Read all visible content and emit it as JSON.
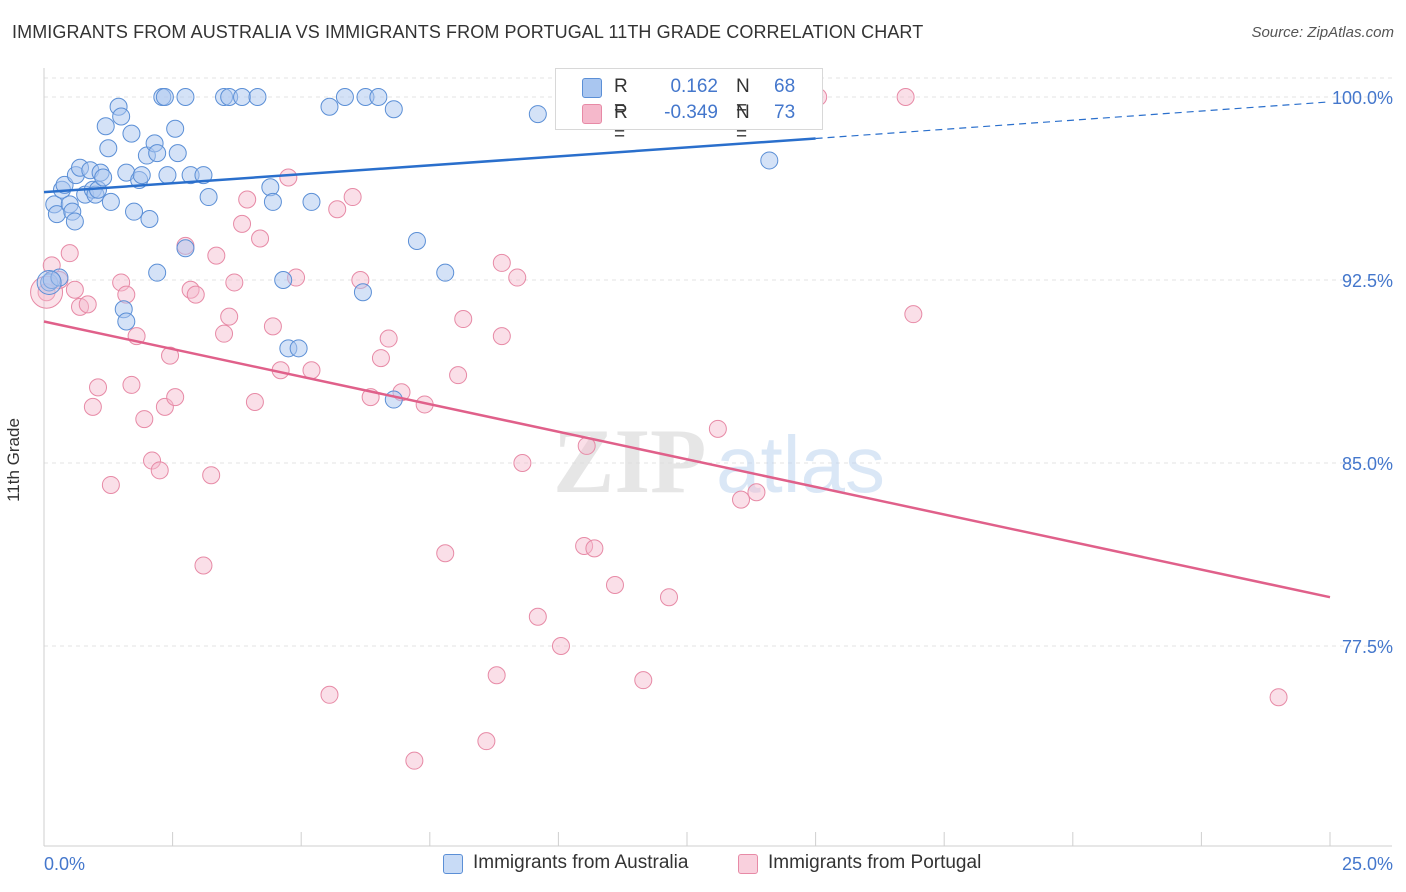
{
  "header": {
    "title": "IMMIGRANTS FROM AUSTRALIA VS IMMIGRANTS FROM PORTUGAL 11TH GRADE CORRELATION CHART",
    "source": "Source: ZipAtlas.com"
  },
  "watermark": {
    "zip": "ZIP",
    "atlas": "atlas"
  },
  "legend_top": {
    "rows": [
      {
        "r_label": "R =",
        "r_value": "0.162",
        "n_label": "N =",
        "n_value": "68",
        "color": "#a9c6f0"
      },
      {
        "r_label": "R =",
        "r_value": "-0.349",
        "n_label": "N =",
        "n_value": "73",
        "color": "#f5b8cb"
      }
    ]
  },
  "legend_bottom": {
    "items": [
      {
        "label": "Immigrants from Australia",
        "color": "#a9c6f0"
      },
      {
        "label": "Immigrants from Portugal",
        "color": "#f5b8cb"
      }
    ]
  },
  "colors": {
    "australia_fill": "#a9c6f0",
    "australia_stroke": "#5b8fd6",
    "australia_line": "#2a6fcc",
    "portugal_fill": "#f5b8cb",
    "portugal_stroke": "#e78aa6",
    "portugal_line": "#e0608a",
    "grid": "#e3e3e3",
    "tick_label": "#4477cc"
  },
  "chart_data": {
    "type": "scatter",
    "title": "IMMIGRANTS FROM AUSTRALIA VS IMMIGRANTS FROM PORTUGAL 11TH GRADE CORRELATION CHART",
    "xlabel": "",
    "ylabel": "11th Grade",
    "xlim": [
      0,
      25
    ],
    "ylim": [
      70.5,
      101.5
    ],
    "x_tick_labels": [
      "0.0%",
      "25.0%"
    ],
    "y_ticks": [
      77.5,
      85.0,
      92.5,
      100.0
    ],
    "y_tick_labels": [
      "77.5%",
      "85.0%",
      "92.5%",
      "100.0%"
    ],
    "grid": true,
    "legend_position": "top-center",
    "series": [
      {
        "name": "Immigrants from Australia",
        "r": 0.162,
        "n": 68,
        "trend": {
          "x0": 0.0,
          "y0": 96.1,
          "x1": 15.0,
          "y1": 98.3,
          "dashed_to_x": 25.0,
          "dashed_to_y": 99.8
        },
        "points": [
          [
            0.1,
            92.4
          ],
          [
            0.2,
            95.6
          ],
          [
            0.25,
            95.2
          ],
          [
            0.35,
            96.2
          ],
          [
            0.4,
            96.4
          ],
          [
            0.5,
            95.6
          ],
          [
            0.55,
            95.3
          ],
          [
            0.6,
            94.9
          ],
          [
            0.62,
            96.8
          ],
          [
            0.7,
            97.1
          ],
          [
            0.8,
            96.0
          ],
          [
            0.9,
            97.0
          ],
          [
            0.95,
            96.2
          ],
          [
            1.0,
            96.0
          ],
          [
            1.05,
            96.2
          ],
          [
            1.1,
            96.9
          ],
          [
            1.15,
            96.7
          ],
          [
            1.2,
            98.8
          ],
          [
            1.25,
            97.9
          ],
          [
            1.3,
            95.7
          ],
          [
            1.45,
            99.6
          ],
          [
            1.5,
            99.2
          ],
          [
            1.6,
            96.9
          ],
          [
            1.7,
            98.5
          ],
          [
            1.75,
            95.3
          ],
          [
            1.85,
            96.6
          ],
          [
            1.9,
            96.8
          ],
          [
            2.0,
            97.6
          ],
          [
            2.05,
            95.0
          ],
          [
            2.15,
            98.1
          ],
          [
            2.2,
            97.7
          ],
          [
            2.3,
            100.0
          ],
          [
            2.35,
            100.0
          ],
          [
            2.4,
            96.8
          ],
          [
            2.55,
            98.7
          ],
          [
            2.6,
            97.7
          ],
          [
            2.75,
            100.0
          ],
          [
            2.85,
            96.8
          ],
          [
            3.1,
            96.8
          ],
          [
            3.2,
            95.9
          ],
          [
            3.5,
            100.0
          ],
          [
            3.6,
            100.0
          ],
          [
            3.85,
            100.0
          ],
          [
            4.15,
            100.0
          ],
          [
            4.4,
            96.3
          ],
          [
            4.45,
            95.7
          ],
          [
            4.65,
            92.5
          ],
          [
            5.2,
            95.7
          ],
          [
            5.55,
            99.6
          ],
          [
            5.85,
            100.0
          ],
          [
            6.25,
            100.0
          ],
          [
            6.5,
            100.0
          ],
          [
            6.8,
            99.5
          ],
          [
            7.25,
            94.1
          ],
          [
            7.8,
            92.8
          ],
          [
            9.6,
            99.3
          ],
          [
            14.1,
            97.4
          ],
          [
            0.15,
            92.5
          ],
          [
            0.3,
            92.6
          ],
          [
            1.55,
            91.3
          ],
          [
            1.6,
            90.8
          ],
          [
            2.2,
            92.8
          ],
          [
            2.75,
            93.8
          ],
          [
            4.75,
            89.7
          ],
          [
            4.95,
            89.7
          ],
          [
            6.2,
            92.0
          ],
          [
            6.8,
            87.6
          ],
          [
            12.3,
            100.0
          ]
        ]
      },
      {
        "name": "Immigrants from Portugal",
        "r": -0.349,
        "n": 73,
        "trend": {
          "x0": 0.0,
          "y0": 90.8,
          "x1": 25.0,
          "y1": 79.5
        },
        "points": [
          [
            0.05,
            92.0
          ],
          [
            0.15,
            93.1
          ],
          [
            0.3,
            92.5
          ],
          [
            0.5,
            93.6
          ],
          [
            0.6,
            92.1
          ],
          [
            0.7,
            91.4
          ],
          [
            0.85,
            91.5
          ],
          [
            0.95,
            87.3
          ],
          [
            1.05,
            88.1
          ],
          [
            1.3,
            84.1
          ],
          [
            1.5,
            92.4
          ],
          [
            1.6,
            91.9
          ],
          [
            1.7,
            88.2
          ],
          [
            1.8,
            90.2
          ],
          [
            1.95,
            86.8
          ],
          [
            2.1,
            85.1
          ],
          [
            2.25,
            84.7
          ],
          [
            2.35,
            87.3
          ],
          [
            2.45,
            89.4
          ],
          [
            2.55,
            87.7
          ],
          [
            2.75,
            93.9
          ],
          [
            2.85,
            92.1
          ],
          [
            2.95,
            91.9
          ],
          [
            3.1,
            80.8
          ],
          [
            3.25,
            84.5
          ],
          [
            3.35,
            93.5
          ],
          [
            3.5,
            90.3
          ],
          [
            3.6,
            91.0
          ],
          [
            3.7,
            92.4
          ],
          [
            3.85,
            94.8
          ],
          [
            3.95,
            95.8
          ],
          [
            4.1,
            87.5
          ],
          [
            4.2,
            94.2
          ],
          [
            4.45,
            90.6
          ],
          [
            4.6,
            88.8
          ],
          [
            4.75,
            96.7
          ],
          [
            4.9,
            92.6
          ],
          [
            5.2,
            88.8
          ],
          [
            5.55,
            75.5
          ],
          [
            5.7,
            95.4
          ],
          [
            6.0,
            95.9
          ],
          [
            6.15,
            92.5
          ],
          [
            6.35,
            87.7
          ],
          [
            6.55,
            89.3
          ],
          [
            6.7,
            90.1
          ],
          [
            6.95,
            87.9
          ],
          [
            7.2,
            72.8
          ],
          [
            7.4,
            87.4
          ],
          [
            7.8,
            81.3
          ],
          [
            8.05,
            88.6
          ],
          [
            8.15,
            90.9
          ],
          [
            8.6,
            73.6
          ],
          [
            8.8,
            76.3
          ],
          [
            8.9,
            90.2
          ],
          [
            8.9,
            93.2
          ],
          [
            9.2,
            92.6
          ],
          [
            9.3,
            85.0
          ],
          [
            9.6,
            78.7
          ],
          [
            10.05,
            77.5
          ],
          [
            10.5,
            81.6
          ],
          [
            10.55,
            85.7
          ],
          [
            10.7,
            81.5
          ],
          [
            11.1,
            80.0
          ],
          [
            11.65,
            76.1
          ],
          [
            12.15,
            79.5
          ],
          [
            13.1,
            86.4
          ],
          [
            13.55,
            83.5
          ],
          [
            13.85,
            83.8
          ],
          [
            14.2,
            100.0
          ],
          [
            15.05,
            100.0
          ],
          [
            16.75,
            100.0
          ],
          [
            16.9,
            91.1
          ],
          [
            24.0,
            75.4
          ]
        ]
      }
    ]
  }
}
